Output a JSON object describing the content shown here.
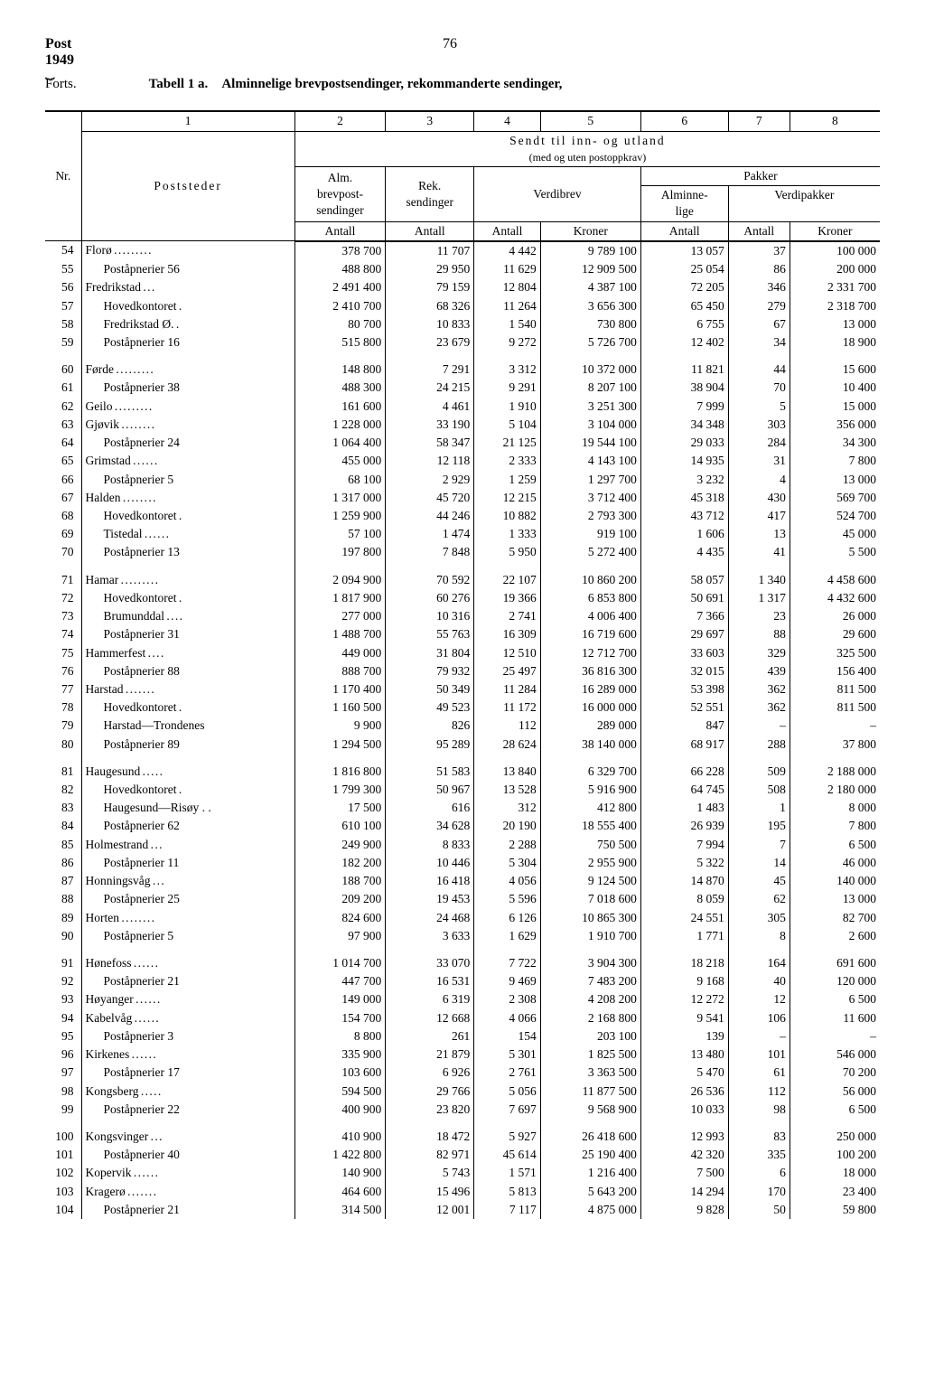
{
  "page": {
    "post_label": "Post",
    "year": "1949",
    "page_number": "76",
    "forts": "Forts.",
    "table_label_bold": "Tabell 1 a.",
    "table_title": "Alminnelige brevpostsendinger, rekommanderte sendinger,"
  },
  "headers": {
    "col_nums": [
      "1",
      "2",
      "3",
      "4",
      "5",
      "6",
      "7",
      "8"
    ],
    "nr": "Nr.",
    "poststeder": "Poststeder",
    "sendt": "Sendt til inn- og utland",
    "sendt_sub": "(med og uten postoppkrav)",
    "alm": "Alm. brevpost-sendinger",
    "rek": "Rek. sendinger",
    "verdibrev": "Verdibrev",
    "pakker": "Pakker",
    "alminnelige": "Alminne-lige",
    "verdipakker": "Verdipakker",
    "antall": "Antall",
    "kroner": "Kroner"
  },
  "rows": [
    {
      "nr": "54",
      "name": "Florø",
      "dots": true,
      "indent": 0,
      "c2": "378 700",
      "c3": "11 707",
      "c4": "4 442",
      "c5": "9 789 100",
      "c6": "13 057",
      "c7": "37",
      "c8": "100 000"
    },
    {
      "nr": "55",
      "name": "Poståpnerier  56",
      "indent": 1,
      "c2": "488 800",
      "c3": "29 950",
      "c4": "11 629",
      "c5": "12 909 500",
      "c6": "25 054",
      "c7": "86",
      "c8": "200 000"
    },
    {
      "nr": "56",
      "name": "Fredrikstad",
      "dots": true,
      "indent": 0,
      "c2": "2 491 400",
      "c3": "79 159",
      "c4": "12 804",
      "c5": "4 387 100",
      "c6": "72 205",
      "c7": "346",
      "c8": "2 331 700"
    },
    {
      "nr": "57",
      "name": "Hovedkontoret",
      "dots": true,
      "indent": 1,
      "c2": "2 410 700",
      "c3": "68 326",
      "c4": "11 264",
      "c5": "3 656 300",
      "c6": "65 450",
      "c7": "279",
      "c8": "2 318 700"
    },
    {
      "nr": "58",
      "name": "Fredrikstad Ø.",
      "dots": true,
      "indent": 1,
      "c2": "80 700",
      "c3": "10 833",
      "c4": "1 540",
      "c5": "730 800",
      "c6": "6 755",
      "c7": "67",
      "c8": "13 000"
    },
    {
      "nr": "59",
      "name": "Poståpnerier  16",
      "indent": 1,
      "c2": "515 800",
      "c3": "23 679",
      "c4": "9 272",
      "c5": "5 726 700",
      "c6": "12 402",
      "c7": "34",
      "c8": "18 900"
    },
    {
      "spacer": true
    },
    {
      "nr": "60",
      "name": "Førde",
      "dots": true,
      "indent": 0,
      "c2": "148 800",
      "c3": "7 291",
      "c4": "3 312",
      "c5": "10 372 000",
      "c6": "11 821",
      "c7": "44",
      "c8": "15 600"
    },
    {
      "nr": "61",
      "name": "Poståpnerier  38",
      "indent": 1,
      "c2": "488 300",
      "c3": "24 215",
      "c4": "9 291",
      "c5": "8 207 100",
      "c6": "38 904",
      "c7": "70",
      "c8": "10 400"
    },
    {
      "nr": "62",
      "name": "Geilo",
      "dots": true,
      "indent": 0,
      "c2": "161 600",
      "c3": "4 461",
      "c4": "1 910",
      "c5": "3 251 300",
      "c6": "7 999",
      "c7": "5",
      "c8": "15 000"
    },
    {
      "nr": "63",
      "name": "Gjøvik",
      "dots": true,
      "indent": 0,
      "c2": "1 228 000",
      "c3": "33 190",
      "c4": "5 104",
      "c5": "3 104 000",
      "c6": "34 348",
      "c7": "303",
      "c8": "356 000"
    },
    {
      "nr": "64",
      "name": "Poståpnerier  24",
      "indent": 1,
      "c2": "1 064 400",
      "c3": "58 347",
      "c4": "21 125",
      "c5": "19 544 100",
      "c6": "29 033",
      "c7": "284",
      "c8": "34 300"
    },
    {
      "nr": "65",
      "name": "Grimstad",
      "dots": true,
      "indent": 0,
      "c2": "455 000",
      "c3": "12 118",
      "c4": "2 333",
      "c5": "4 143 100",
      "c6": "14 935",
      "c7": "31",
      "c8": "7 800"
    },
    {
      "nr": "66",
      "name": "Poståpnerier   5",
      "indent": 1,
      "c2": "68 100",
      "c3": "2 929",
      "c4": "1 259",
      "c5": "1 297 700",
      "c6": "3 232",
      "c7": "4",
      "c8": "13 000"
    },
    {
      "nr": "67",
      "name": "Halden",
      "dots": true,
      "indent": 0,
      "c2": "1 317 000",
      "c3": "45 720",
      "c4": "12 215",
      "c5": "3 712 400",
      "c6": "45 318",
      "c7": "430",
      "c8": "569 700"
    },
    {
      "nr": "68",
      "name": "Hovedkontoret",
      "dots": true,
      "indent": 1,
      "c2": "1 259 900",
      "c3": "44 246",
      "c4": "10 882",
      "c5": "2 793 300",
      "c6": "43 712",
      "c7": "417",
      "c8": "524 700"
    },
    {
      "nr": "69",
      "name": "Tistedal",
      "dots": true,
      "indent": 1,
      "c2": "57 100",
      "c3": "1 474",
      "c4": "1 333",
      "c5": "919 100",
      "c6": "1 606",
      "c7": "13",
      "c8": "45 000"
    },
    {
      "nr": "70",
      "name": "Poståpnerier  13",
      "indent": 1,
      "c2": "197 800",
      "c3": "7 848",
      "c4": "5 950",
      "c5": "5 272 400",
      "c6": "4 435",
      "c7": "41",
      "c8": "5 500"
    },
    {
      "spacer": true
    },
    {
      "nr": "71",
      "name": "Hamar",
      "dots": true,
      "indent": 0,
      "c2": "2 094 900",
      "c3": "70 592",
      "c4": "22 107",
      "c5": "10 860 200",
      "c6": "58 057",
      "c7": "1 340",
      "c8": "4 458 600"
    },
    {
      "nr": "72",
      "name": "Hovedkontoret",
      "dots": true,
      "indent": 1,
      "c2": "1 817 900",
      "c3": "60 276",
      "c4": "19 366",
      "c5": "6 853 800",
      "c6": "50 691",
      "c7": "1 317",
      "c8": "4 432 600"
    },
    {
      "nr": "73",
      "name": "Brumunddal",
      "dots": true,
      "indent": 1,
      "c2": "277 000",
      "c3": "10 316",
      "c4": "2 741",
      "c5": "4 006 400",
      "c6": "7 366",
      "c7": "23",
      "c8": "26 000"
    },
    {
      "nr": "74",
      "name": "Poståpnerier  31",
      "indent": 1,
      "c2": "1 488 700",
      "c3": "55 763",
      "c4": "16 309",
      "c5": "16 719 600",
      "c6": "29 697",
      "c7": "88",
      "c8": "29 600"
    },
    {
      "nr": "75",
      "name": "Hammerfest",
      "dots": true,
      "indent": 0,
      "c2": "449 000",
      "c3": "31 804",
      "c4": "12 510",
      "c5": "12 712 700",
      "c6": "33 603",
      "c7": "329",
      "c8": "325 500"
    },
    {
      "nr": "76",
      "name": "Poståpnerier  88",
      "indent": 1,
      "c2": "888 700",
      "c3": "79 932",
      "c4": "25 497",
      "c5": "36 816 300",
      "c6": "32 015",
      "c7": "439",
      "c8": "156 400"
    },
    {
      "nr": "77",
      "name": "Harstad",
      "dots": true,
      "indent": 0,
      "c2": "1 170 400",
      "c3": "50 349",
      "c4": "11 284",
      "c5": "16 289 000",
      "c6": "53 398",
      "c7": "362",
      "c8": "811 500"
    },
    {
      "nr": "78",
      "name": "Hovedkontoret",
      "dots": true,
      "indent": 1,
      "c2": "1 160 500",
      "c3": "49 523",
      "c4": "11 172",
      "c5": "16 000 000",
      "c6": "52 551",
      "c7": "362",
      "c8": "811 500"
    },
    {
      "nr": "79",
      "name": "Harstad—Trondenes",
      "indent": 1,
      "c2": "9 900",
      "c3": "826",
      "c4": "112",
      "c5": "289 000",
      "c6": "847",
      "c7": "–",
      "c8": "–"
    },
    {
      "nr": "80",
      "name": "Poståpnerier  89",
      "indent": 1,
      "c2": "1 294 500",
      "c3": "95 289",
      "c4": "28 624",
      "c5": "38 140 000",
      "c6": "68 917",
      "c7": "288",
      "c8": "37 800"
    },
    {
      "spacer": true
    },
    {
      "nr": "81",
      "name": "Haugesund",
      "dots": true,
      "indent": 0,
      "c2": "1 816 800",
      "c3": "51 583",
      "c4": "13 840",
      "c5": "6 329 700",
      "c6": "66 228",
      "c7": "509",
      "c8": "2 188 000"
    },
    {
      "nr": "82",
      "name": "Hovedkontoret",
      "dots": true,
      "indent": 1,
      "c2": "1 799 300",
      "c3": "50 967",
      "c4": "13 528",
      "c5": "5 916 900",
      "c6": "64 745",
      "c7": "508",
      "c8": "2 180 000"
    },
    {
      "nr": "83",
      "name": "Haugesund—Risøy . .",
      "indent": 1,
      "c2": "17 500",
      "c3": "616",
      "c4": "312",
      "c5": "412 800",
      "c6": "1 483",
      "c7": "1",
      "c8": "8 000"
    },
    {
      "nr": "84",
      "name": "Poståpnerier  62",
      "indent": 1,
      "c2": "610 100",
      "c3": "34 628",
      "c4": "20 190",
      "c5": "18 555 400",
      "c6": "26 939",
      "c7": "195",
      "c8": "7 800"
    },
    {
      "nr": "85",
      "name": "Holmestrand",
      "dots": true,
      "indent": 0,
      "c2": "249 900",
      "c3": "8 833",
      "c4": "2 288",
      "c5": "750 500",
      "c6": "7 994",
      "c7": "7",
      "c8": "6 500"
    },
    {
      "nr": "86",
      "name": "Poståpnerier  11",
      "indent": 1,
      "c2": "182 200",
      "c3": "10 446",
      "c4": "5 304",
      "c5": "2 955 900",
      "c6": "5 322",
      "c7": "14",
      "c8": "46 000"
    },
    {
      "nr": "87",
      "name": "Honningsvåg",
      "dots": true,
      "indent": 0,
      "c2": "188 700",
      "c3": "16 418",
      "c4": "4 056",
      "c5": "9 124 500",
      "c6": "14 870",
      "c7": "45",
      "c8": "140 000"
    },
    {
      "nr": "88",
      "name": "Poståpnerier  25",
      "indent": 1,
      "c2": "209 200",
      "c3": "19 453",
      "c4": "5 596",
      "c5": "7 018 600",
      "c6": "8 059",
      "c7": "62",
      "c8": "13 000"
    },
    {
      "nr": "89",
      "name": "Horten",
      "dots": true,
      "indent": 0,
      "c2": "824 600",
      "c3": "24 468",
      "c4": "6 126",
      "c5": "10 865 300",
      "c6": "24 551",
      "c7": "305",
      "c8": "82 700"
    },
    {
      "nr": "90",
      "name": "Poståpnerier   5",
      "indent": 1,
      "c2": "97 900",
      "c3": "3 633",
      "c4": "1 629",
      "c5": "1 910 700",
      "c6": "1 771",
      "c7": "8",
      "c8": "2 600"
    },
    {
      "spacer": true
    },
    {
      "nr": "91",
      "name": "Hønefoss",
      "dots": true,
      "indent": 0,
      "c2": "1 014 700",
      "c3": "33 070",
      "c4": "7 722",
      "c5": "3 904 300",
      "c6": "18 218",
      "c7": "164",
      "c8": "691 600"
    },
    {
      "nr": "92",
      "name": "Poståpnerier  21",
      "indent": 1,
      "c2": "447 700",
      "c3": "16 531",
      "c4": "9 469",
      "c5": "7 483 200",
      "c6": "9 168",
      "c7": "40",
      "c8": "120 000"
    },
    {
      "nr": "93",
      "name": "Høyanger",
      "dots": true,
      "indent": 0,
      "c2": "149 000",
      "c3": "6 319",
      "c4": "2 308",
      "c5": "4 208 200",
      "c6": "12 272",
      "c7": "12",
      "c8": "6 500"
    },
    {
      "nr": "94",
      "name": "Kabelvåg",
      "dots": true,
      "indent": 0,
      "c2": "154 700",
      "c3": "12 668",
      "c4": "4 066",
      "c5": "2 168 800",
      "c6": "9 541",
      "c7": "106",
      "c8": "11 600"
    },
    {
      "nr": "95",
      "name": "Poståpnerier   3",
      "indent": 1,
      "c2": "8 800",
      "c3": "261",
      "c4": "154",
      "c5": "203 100",
      "c6": "139",
      "c7": "–",
      "c8": "–"
    },
    {
      "nr": "96",
      "name": "Kirkenes",
      "dots": true,
      "indent": 0,
      "c2": "335 900",
      "c3": "21 879",
      "c4": "5 301",
      "c5": "1 825 500",
      "c6": "13 480",
      "c7": "101",
      "c8": "546 000"
    },
    {
      "nr": "97",
      "name": "Poståpnerier  17",
      "indent": 1,
      "c2": "103 600",
      "c3": "6 926",
      "c4": "2 761",
      "c5": "3 363 500",
      "c6": "5 470",
      "c7": "61",
      "c8": "70 200"
    },
    {
      "nr": "98",
      "name": "Kongsberg",
      "dots": true,
      "indent": 0,
      "c2": "594 500",
      "c3": "29 766",
      "c4": "5 056",
      "c5": "11 877 500",
      "c6": "26 536",
      "c7": "112",
      "c8": "56 000"
    },
    {
      "nr": "99",
      "name": "Poståpnerier  22",
      "indent": 1,
      "c2": "400 900",
      "c3": "23 820",
      "c4": "7 697",
      "c5": "9 568 900",
      "c6": "10 033",
      "c7": "98",
      "c8": "6 500"
    },
    {
      "spacer": true
    },
    {
      "nr": "100",
      "name": "Kongsvinger",
      "dots": true,
      "indent": 0,
      "c2": "410 900",
      "c3": "18 472",
      "c4": "5 927",
      "c5": "26 418 600",
      "c6": "12 993",
      "c7": "83",
      "c8": "250 000"
    },
    {
      "nr": "101",
      "name": "Poståpnerier  40",
      "indent": 1,
      "c2": "1 422 800",
      "c3": "82 971",
      "c4": "45 614",
      "c5": "25 190 400",
      "c6": "42 320",
      "c7": "335",
      "c8": "100 200"
    },
    {
      "nr": "102",
      "name": "Kopervik",
      "dots": true,
      "indent": 0,
      "c2": "140 900",
      "c3": "5 743",
      "c4": "1 571",
      "c5": "1 216 400",
      "c6": "7 500",
      "c7": "6",
      "c8": "18 000"
    },
    {
      "nr": "103",
      "name": "Kragerø",
      "dots": true,
      "indent": 0,
      "c2": "464 600",
      "c3": "15 496",
      "c4": "5 813",
      "c5": "5 643 200",
      "c6": "14 294",
      "c7": "170",
      "c8": "23 400"
    },
    {
      "nr": "104",
      "name": "Poståpnerier  21",
      "indent": 1,
      "c2": "314 500",
      "c3": "12 001",
      "c4": "7 117",
      "c5": "4 875 000",
      "c6": "9 828",
      "c7": "50",
      "c8": "59 800"
    }
  ]
}
